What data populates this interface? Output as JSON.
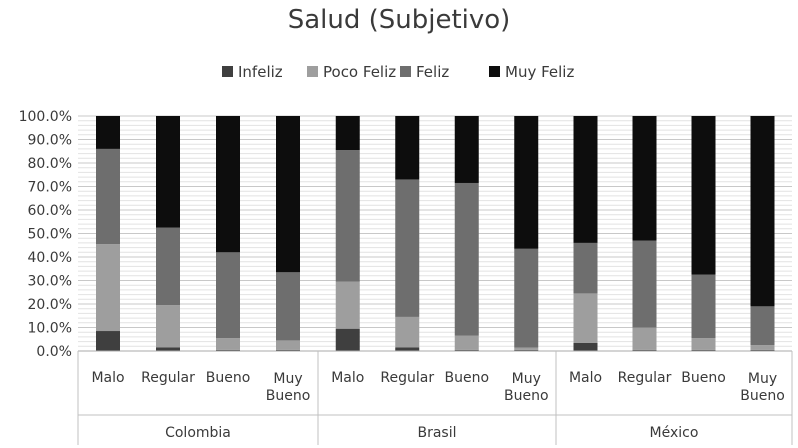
{
  "chart_data": {
    "type": "bar",
    "stacked": true,
    "percent": true,
    "title": "Salud (Subjetivo)",
    "legend_position": "top",
    "grid": true,
    "ylim": [
      0,
      100
    ],
    "yticks": [
      "0.0%",
      "10.0%",
      "20.0%",
      "30.0%",
      "40.0%",
      "50.0%",
      "60.0%",
      "70.0%",
      "80.0%",
      "90.0%",
      "100.0%"
    ],
    "groups": [
      {
        "label": "Colombia",
        "categories": [
          "Malo",
          "Regular",
          "Bueno",
          "Muy Bueno"
        ]
      },
      {
        "label": "Brasil",
        "categories": [
          "Malo",
          "Regular",
          "Bueno",
          "Muy Bueno"
        ]
      },
      {
        "label": "México",
        "categories": [
          "Malo",
          "Regular",
          "Bueno",
          "Muy Bueno"
        ]
      }
    ],
    "categories": [
      "Malo",
      "Regular",
      "Bueno",
      "Muy Bueno",
      "Malo",
      "Regular",
      "Bueno",
      "Muy Bueno",
      "Malo",
      "Regular",
      "Bueno",
      "Muy Bueno"
    ],
    "series": [
      {
        "name": "Infeliz",
        "color": "#3f3f3f",
        "values": [
          8.5,
          1.5,
          0.5,
          0.5,
          9.5,
          1.5,
          0.5,
          0.5,
          3.5,
          0.5,
          0.5,
          0.5
        ]
      },
      {
        "name": "Poco Feliz",
        "color": "#9e9e9e",
        "values": [
          37.0,
          18.0,
          5.0,
          4.0,
          20.0,
          13.0,
          6.0,
          1.0,
          21.0,
          9.5,
          5.0,
          2.0
        ]
      },
      {
        "name": "Feliz",
        "color": "#6e6e6e",
        "values": [
          40.5,
          33.0,
          36.5,
          29.0,
          56.0,
          58.5,
          65.0,
          42.0,
          21.5,
          37.0,
          27.0,
          16.5
        ]
      },
      {
        "name": "Muy Feliz",
        "color": "#0d0d0d",
        "values": [
          14.0,
          47.5,
          58.0,
          66.5,
          14.5,
          27.0,
          28.5,
          56.5,
          54.0,
          53.0,
          67.5,
          81.0
        ]
      }
    ]
  }
}
